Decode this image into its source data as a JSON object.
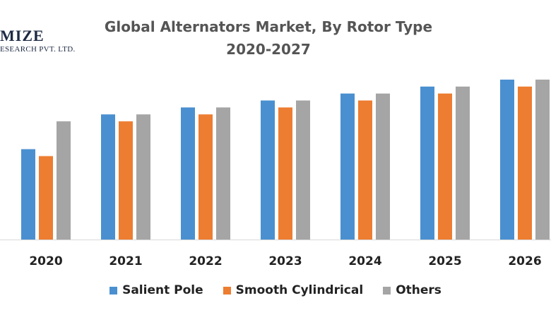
{
  "logo": {
    "main": "MIZE",
    "sub": "ESEARCH PVT. LTD."
  },
  "chart_data": {
    "type": "bar",
    "title": "Global Alternators Market, By Rotor Type",
    "subtitle": "2020-2027",
    "categories": [
      "2020",
      "2021",
      "2022",
      "2023",
      "2024",
      "2025",
      "2026"
    ],
    "series": [
      {
        "name": "Salient Pole",
        "color": "#4a90d0",
        "values": [
          13,
          18,
          19,
          20,
          21,
          22,
          23
        ]
      },
      {
        "name": "Smooth Cylindrical",
        "color": "#ed7d31",
        "values": [
          12,
          17,
          18,
          19,
          20,
          21,
          22
        ]
      },
      {
        "name": "Others",
        "color": "#a5a5a5",
        "values": [
          17,
          18,
          19,
          20,
          21,
          22,
          23
        ]
      }
    ],
    "ylim": [
      0,
      23
    ],
    "grid": false,
    "legend": "bottom"
  }
}
